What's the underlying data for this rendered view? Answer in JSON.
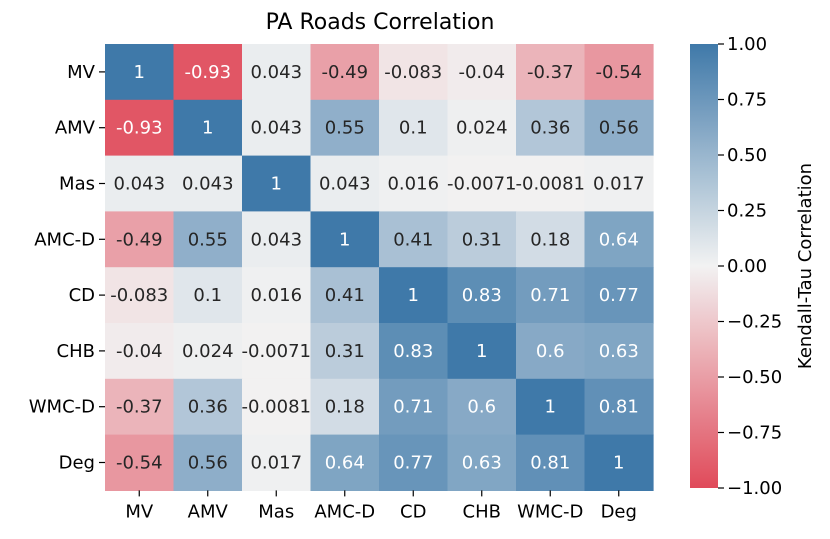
{
  "chart_data": {
    "type": "heatmap",
    "title": "PA Roads Correlation",
    "rows": [
      "MV",
      "AMV",
      "Mas",
      "AMC-D",
      "CD",
      "CHB",
      "WMC-D",
      "Deg"
    ],
    "columns": [
      "MV",
      "AMV",
      "Mas",
      "AMC-D",
      "CD",
      "CHB",
      "WMC-D",
      "Deg"
    ],
    "values": [
      [
        1,
        -0.93,
        0.043,
        -0.49,
        -0.083,
        -0.04,
        -0.37,
        -0.54
      ],
      [
        -0.93,
        1,
        0.043,
        0.55,
        0.1,
        0.024,
        0.36,
        0.56
      ],
      [
        0.043,
        0.043,
        1,
        0.043,
        0.016,
        -0.0071,
        -0.0081,
        0.017
      ],
      [
        -0.49,
        0.55,
        0.043,
        1,
        0.41,
        0.31,
        0.18,
        0.64
      ],
      [
        -0.083,
        0.1,
        0.016,
        0.41,
        1,
        0.83,
        0.71,
        0.77
      ],
      [
        -0.04,
        0.024,
        -0.0071,
        0.31,
        0.83,
        1,
        0.6,
        0.63
      ],
      [
        -0.37,
        0.36,
        -0.0081,
        0.18,
        0.71,
        0.6,
        1,
        0.81
      ],
      [
        -0.54,
        0.56,
        0.017,
        0.64,
        0.77,
        0.63,
        0.81,
        1
      ]
    ],
    "cell_labels": [
      [
        "1",
        "-0.93",
        "0.043",
        "-0.49",
        "-0.083",
        "-0.04",
        "-0.37",
        "-0.54"
      ],
      [
        "-0.93",
        "1",
        "0.043",
        "0.55",
        "0.1",
        "0.024",
        "0.36",
        "0.56"
      ],
      [
        "0.043",
        "0.043",
        "1",
        "0.043",
        "0.016",
        "-0.0071",
        "-0.0081",
        "0.017"
      ],
      [
        "-0.49",
        "0.55",
        "0.043",
        "1",
        "0.41",
        "0.31",
        "0.18",
        "0.64"
      ],
      [
        "-0.083",
        "0.1",
        "0.016",
        "0.41",
        "1",
        "0.83",
        "0.71",
        "0.77"
      ],
      [
        "-0.04",
        "0.024",
        "-0.0071",
        "0.31",
        "0.83",
        "1",
        "0.6",
        "0.63"
      ],
      [
        "-0.37",
        "0.36",
        "-0.0081",
        "0.18",
        "0.71",
        "0.6",
        "1",
        "0.81"
      ],
      [
        "-0.54",
        "0.56",
        "0.017",
        "0.64",
        "0.77",
        "0.63",
        "0.81",
        "1"
      ]
    ],
    "colorbar": {
      "label": "Kendall-Tau Correlation",
      "vmin": -1.0,
      "vmax": 1.0,
      "ticks": [
        1.0,
        0.75,
        0.5,
        0.25,
        0.0,
        -0.25,
        -0.5,
        -0.75,
        -1.0
      ],
      "tick_labels": [
        "1.00",
        "0.75",
        "0.50",
        "0.25",
        "0.00",
        "−0.25",
        "−0.50",
        "−0.75",
        "−1.00"
      ]
    },
    "colors": {
      "negative": "#e04a5a",
      "neutral": "#f2f2f2",
      "positive": "#3f79a9",
      "dark_text": "#262626",
      "light_text": "#ffffff"
    }
  }
}
